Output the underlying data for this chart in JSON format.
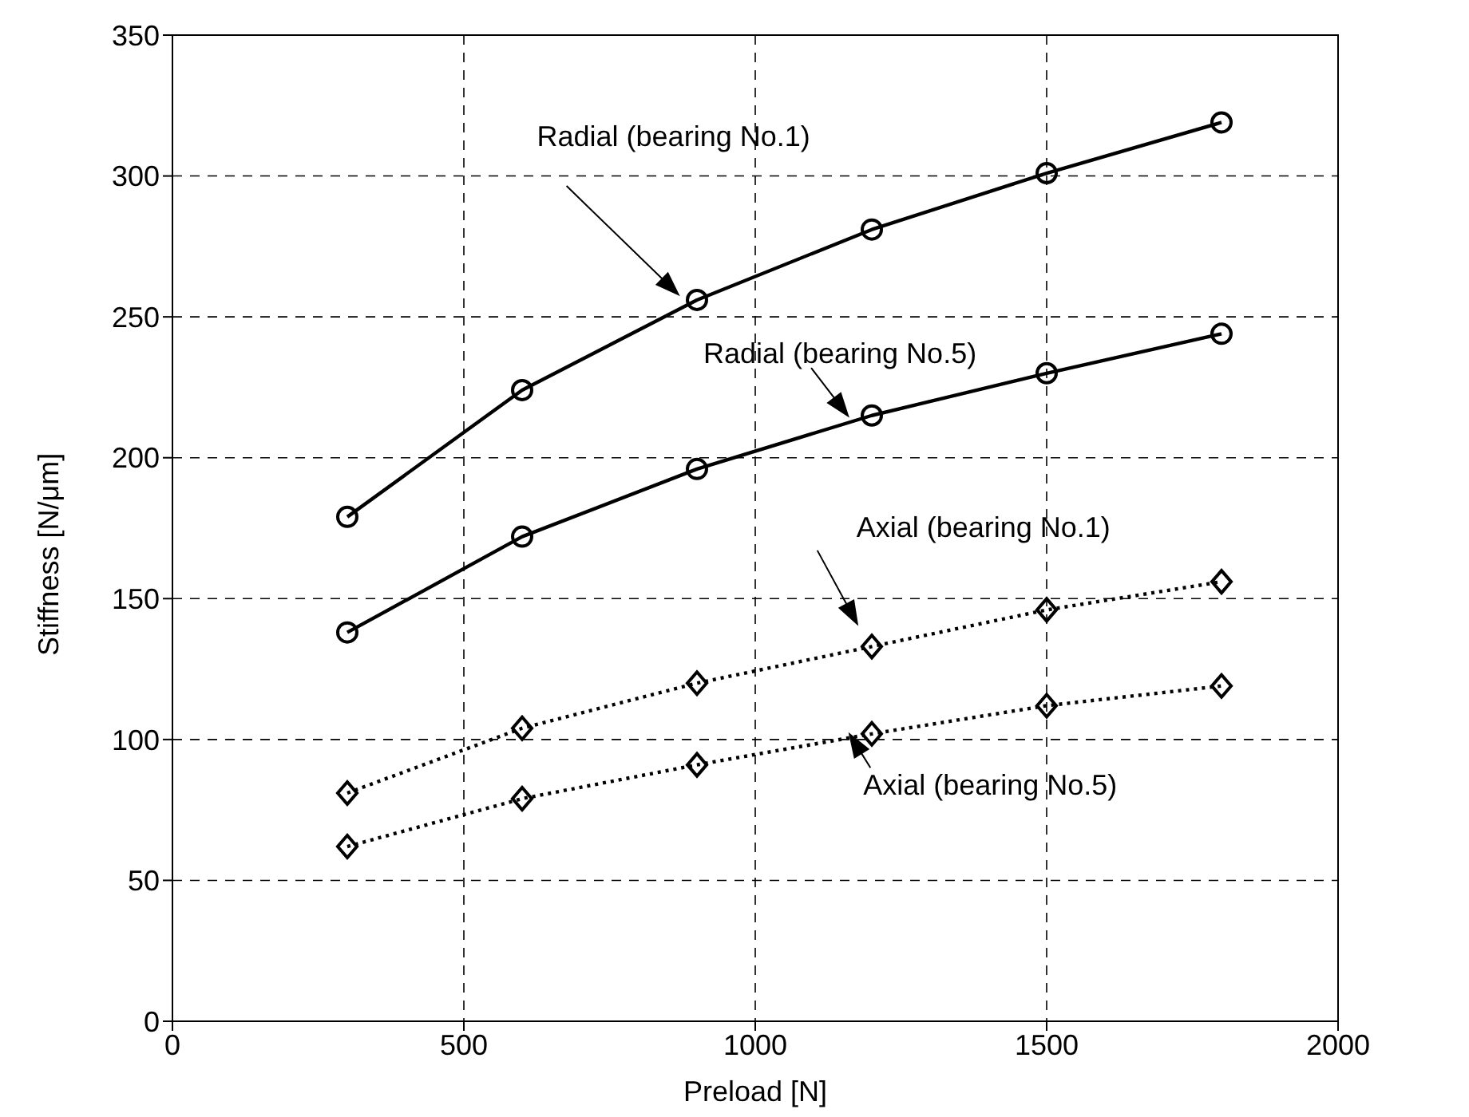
{
  "chart_data": {
    "type": "line",
    "xlabel": "Preload [N]",
    "ylabel": "Stiffness [N/μm]",
    "x": [
      300,
      600,
      900,
      1200,
      1500,
      1800
    ],
    "series": [
      {
        "color": "#000000",
        "marker": "circle",
        "line_style": "solid",
        "values": [
          179,
          224,
          256,
          281,
          301,
          319
        ]
      },
      {
        "color": "#000000",
        "marker": "circle",
        "line_style": "solid",
        "values": [
          138,
          172,
          196,
          215,
          230,
          244
        ]
      },
      {
        "color": "#000000",
        "marker": "diamond",
        "line_style": "dotted",
        "values": [
          81,
          104,
          120,
          133,
          146,
          156
        ]
      },
      {
        "color": "#000000",
        "marker": "diamond",
        "line_style": "dotted",
        "values": [
          62,
          79,
          91,
          102,
          112,
          119
        ]
      }
    ],
    "xlim": [
      0,
      2000
    ],
    "xticks": [
      0,
      500,
      1000,
      1500,
      2000
    ],
    "ylim": [
      0,
      350
    ],
    "yticks": [
      0,
      50,
      100,
      150,
      200,
      250,
      300,
      350
    ],
    "grid": true,
    "annotations": [
      "Radial (bearing No.1)",
      "Radial (bearing No.5)",
      "Axial (bearing No.1)",
      "Axial (bearing No.5)"
    ]
  }
}
